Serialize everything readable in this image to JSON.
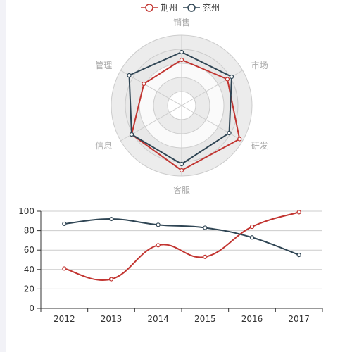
{
  "chart_data": [
    {
      "type": "radar",
      "legend": [
        "荆州",
        "兖州"
      ],
      "legend_position": "top-center",
      "indicators": [
        "销售",
        "市场",
        "研发",
        "客服",
        "信息",
        "管理"
      ],
      "series": [
        {
          "name": "荆州",
          "color": "#c23531",
          "values": [
            0.65,
            0.75,
            0.95,
            0.92,
            0.82,
            0.62
          ]
        },
        {
          "name": "兖州",
          "color": "#2f4554",
          "values": [
            0.76,
            0.82,
            0.78,
            0.83,
            0.82,
            0.86
          ]
        }
      ],
      "split_bands": 5,
      "shading": "alternating gray bands"
    },
    {
      "type": "line",
      "smooth": true,
      "categories": [
        "2012",
        "2013",
        "2014",
        "2015",
        "2016",
        "2017"
      ],
      "series": [
        {
          "name": "荆州",
          "color": "#c23531",
          "values": [
            41,
            30,
            65,
            53,
            84,
            99
          ]
        },
        {
          "name": "兖州",
          "color": "#2f4554",
          "values": [
            87,
            92,
            86,
            83,
            73,
            55
          ]
        }
      ],
      "ylim": [
        0,
        100
      ],
      "yticks": [
        0,
        20,
        40,
        60,
        80,
        100
      ],
      "grid": "horizontal",
      "xlabel": "",
      "ylabel": ""
    }
  ]
}
